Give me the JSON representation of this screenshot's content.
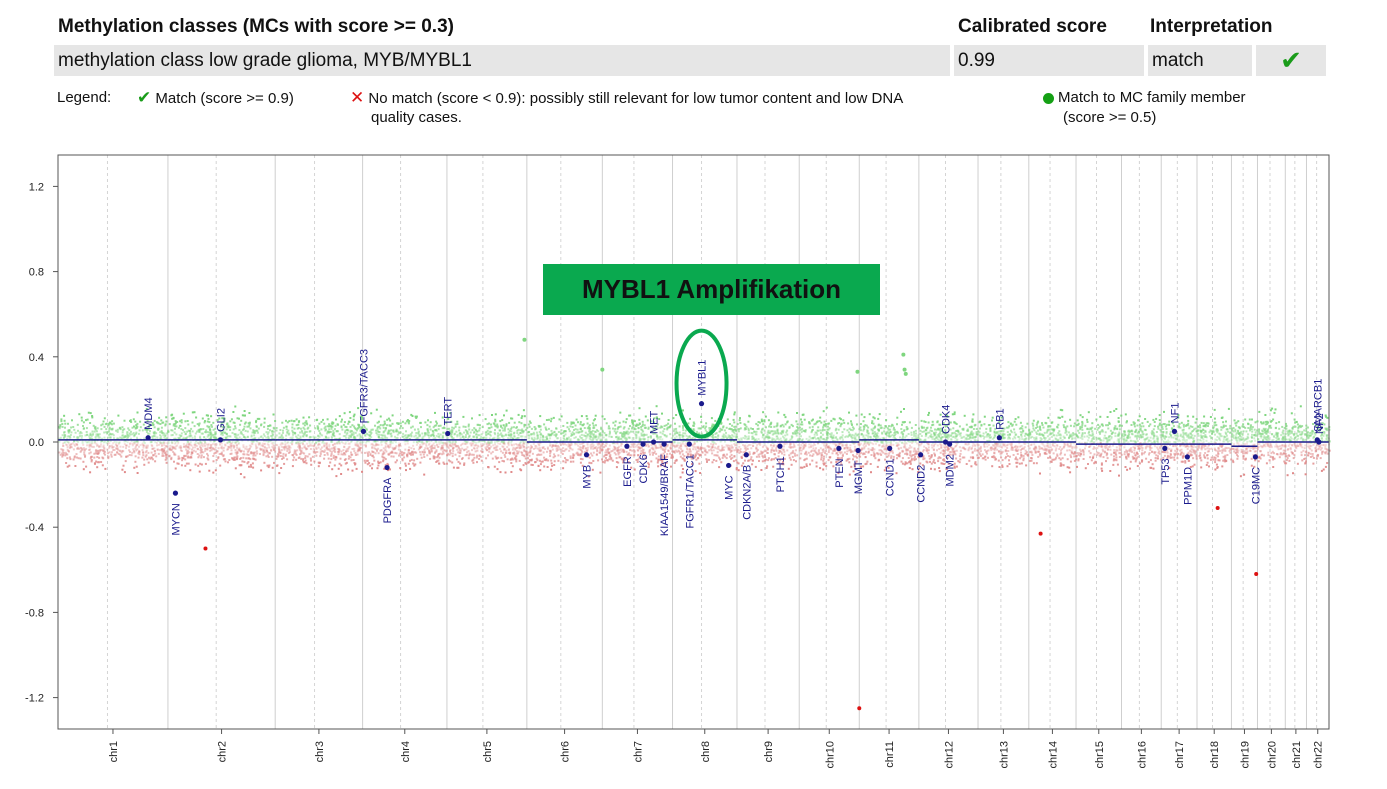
{
  "header": {
    "col_class": "Methylation classes (MCs with score >= 0.3)",
    "col_score": "Calibrated score",
    "col_interp": "Interpretation"
  },
  "row": {
    "class_name": "methylation class low grade glioma, MYB/MYBL1",
    "score": "0.99",
    "interpretation": "match",
    "status_icon": "check-icon"
  },
  "legend": {
    "label": "Legend:",
    "match": "Match (score >= 0.9)",
    "nomatch_line1": "No match (score < 0.9): possibly still relevant for low tumor content and low DNA",
    "nomatch_line2": "quality cases.",
    "family_line1": "Match to MC family member",
    "family_line2": "(score >= 0.5)"
  },
  "colors": {
    "match_green": "#1a9c1a",
    "nomatch_red": "#dd1111",
    "segment_blue": "#1a1a8c",
    "gene_label": "#1a1a8c",
    "gain_points": "#7fd67f",
    "loss_points": "#e08a8a",
    "annotation_bg": "#0aa94f",
    "annotation_text": "#111111"
  },
  "chart_data": {
    "type": "scatter",
    "title": "",
    "xlabel": "",
    "ylabel": "",
    "ylim": [
      -1.35,
      1.35
    ],
    "yticks": [
      "1.2",
      "0.8",
      "0.4",
      "0.0",
      "-0.4",
      "-0.8",
      "-1.2"
    ],
    "ytick_values": [
      1.2,
      0.8,
      0.4,
      0.0,
      -0.4,
      -0.8,
      -1.2
    ],
    "grid": "vertical chromosome boundaries",
    "chromosomes": [
      {
        "name": "chr1",
        "len": 249
      },
      {
        "name": "chr2",
        "len": 243
      },
      {
        "name": "chr3",
        "len": 198
      },
      {
        "name": "chr4",
        "len": 191
      },
      {
        "name": "chr5",
        "len": 181
      },
      {
        "name": "chr6",
        "len": 171
      },
      {
        "name": "chr7",
        "len": 159
      },
      {
        "name": "chr8",
        "len": 146
      },
      {
        "name": "chr9",
        "len": 141
      },
      {
        "name": "chr10",
        "len": 136
      },
      {
        "name": "chr11",
        "len": 135
      },
      {
        "name": "chr12",
        "len": 134
      },
      {
        "name": "chr13",
        "len": 115
      },
      {
        "name": "chr14",
        "len": 107
      },
      {
        "name": "chr15",
        "len": 103
      },
      {
        "name": "chr16",
        "len": 90
      },
      {
        "name": "chr17",
        "len": 81
      },
      {
        "name": "chr18",
        "len": 78
      },
      {
        "name": "chr19",
        "len": 59
      },
      {
        "name": "chr20",
        "len": 63
      },
      {
        "name": "chr21",
        "len": 48
      },
      {
        "name": "chr22",
        "len": 51
      }
    ],
    "segments": [
      {
        "chr": "chr1",
        "value": 0.01
      },
      {
        "chr": "chr2",
        "value": 0.01
      },
      {
        "chr": "chr3",
        "value": 0.01
      },
      {
        "chr": "chr4",
        "value": 0.01
      },
      {
        "chr": "chr5",
        "value": 0.01
      },
      {
        "chr": "chr6",
        "value": 0.0
      },
      {
        "chr": "chr7",
        "value": 0.0
      },
      {
        "chr": "chr8",
        "value": 0.01
      },
      {
        "chr": "chr9",
        "value": 0.0
      },
      {
        "chr": "chr10",
        "value": 0.0
      },
      {
        "chr": "chr11",
        "value": 0.01
      },
      {
        "chr": "chr12",
        "value": 0.0
      },
      {
        "chr": "chr13",
        "value": 0.0
      },
      {
        "chr": "chr14",
        "value": 0.0
      },
      {
        "chr": "chr15",
        "value": -0.01
      },
      {
        "chr": "chr16",
        "value": -0.01
      },
      {
        "chr": "chr17",
        "value": -0.01
      },
      {
        "chr": "chr18",
        "value": -0.01
      },
      {
        "chr": "chr19",
        "value": -0.02
      },
      {
        "chr": "chr20",
        "value": 0.0
      },
      {
        "chr": "chr21",
        "value": 0.0
      },
      {
        "chr": "chr22",
        "value": 0.0
      }
    ],
    "genes": [
      {
        "name": "MDM4",
        "chr": "chr1",
        "pos": 0.82,
        "value": 0.02,
        "side": "up"
      },
      {
        "name": "MYCN",
        "chr": "chr2",
        "pos": 0.07,
        "value": -0.24,
        "side": "down"
      },
      {
        "name": "GLI2",
        "chr": "chr2",
        "pos": 0.49,
        "value": 0.01,
        "side": "up"
      },
      {
        "name": "FGFR3/TACC3",
        "chr": "chr4",
        "pos": 0.01,
        "value": 0.05,
        "side": "up"
      },
      {
        "name": "PDGFRA",
        "chr": "chr4",
        "pos": 0.29,
        "value": -0.12,
        "side": "down"
      },
      {
        "name": "TERT",
        "chr": "chr5",
        "pos": 0.01,
        "value": 0.04,
        "side": "up"
      },
      {
        "name": "MYB",
        "chr": "chr6",
        "pos": 0.79,
        "value": -0.06,
        "side": "down"
      },
      {
        "name": "EGFR",
        "chr": "chr7",
        "pos": 0.35,
        "value": -0.02,
        "side": "down"
      },
      {
        "name": "CDK6",
        "chr": "chr7",
        "pos": 0.58,
        "value": -0.01,
        "side": "down"
      },
      {
        "name": "MET",
        "chr": "chr7",
        "pos": 0.73,
        "value": 0.0,
        "side": "up"
      },
      {
        "name": "KIAA1549/BRAF",
        "chr": "chr7",
        "pos": 0.88,
        "value": -0.01,
        "side": "down"
      },
      {
        "name": "FGFR1/TACC1",
        "chr": "chr8",
        "pos": 0.26,
        "value": -0.01,
        "side": "down"
      },
      {
        "name": "MYBL1",
        "chr": "chr8",
        "pos": 0.45,
        "value": 0.18,
        "side": "up"
      },
      {
        "name": "MYC",
        "chr": "chr8",
        "pos": 0.87,
        "value": -0.11,
        "side": "down"
      },
      {
        "name": "CDKN2A/B",
        "chr": "chr9",
        "pos": 0.15,
        "value": -0.06,
        "side": "down"
      },
      {
        "name": "PTCH1",
        "chr": "chr9",
        "pos": 0.69,
        "value": -0.02,
        "side": "down"
      },
      {
        "name": "PTEN",
        "chr": "chr10",
        "pos": 0.66,
        "value": -0.03,
        "side": "down"
      },
      {
        "name": "MGMT",
        "chr": "chr10",
        "pos": 0.98,
        "value": -0.04,
        "side": "down"
      },
      {
        "name": "CCND1",
        "chr": "chr11",
        "pos": 0.51,
        "value": -0.03,
        "side": "down"
      },
      {
        "name": "CCND2",
        "chr": "chr12",
        "pos": 0.03,
        "value": -0.06,
        "side": "down"
      },
      {
        "name": "CDK4",
        "chr": "chr12",
        "pos": 0.45,
        "value": 0.0,
        "side": "up"
      },
      {
        "name": "MDM2",
        "chr": "chr12",
        "pos": 0.52,
        "value": -0.01,
        "side": "down"
      },
      {
        "name": "RB1",
        "chr": "chr13",
        "pos": 0.42,
        "value": 0.02,
        "side": "up"
      },
      {
        "name": "TP53",
        "chr": "chr17",
        "pos": 0.1,
        "value": -0.03,
        "side": "down"
      },
      {
        "name": "NF1",
        "chr": "chr17",
        "pos": 0.37,
        "value": 0.05,
        "side": "up"
      },
      {
        "name": "PPM1D",
        "chr": "chr17",
        "pos": 0.73,
        "value": -0.07,
        "side": "down"
      },
      {
        "name": "C19MC",
        "chr": "chr19",
        "pos": 0.92,
        "value": -0.07,
        "side": "down"
      },
      {
        "name": "SMARCB1",
        "chr": "chr22",
        "pos": 0.48,
        "value": 0.01,
        "side": "up"
      },
      {
        "name": "NF2",
        "chr": "chr22",
        "pos": 0.55,
        "value": 0.0,
        "side": "up"
      }
    ],
    "outliers": [
      {
        "chr": "chr2",
        "pos": 0.35,
        "value": -0.5,
        "color": "red"
      },
      {
        "chr": "chr5",
        "pos": 0.97,
        "value": 0.48,
        "color": "green"
      },
      {
        "chr": "chr7",
        "pos": 0.0,
        "value": 0.34,
        "color": "green"
      },
      {
        "chr": "chr10",
        "pos": 0.97,
        "value": 0.33,
        "color": "green"
      },
      {
        "chr": "chr11",
        "pos": 0.0,
        "value": -1.25,
        "color": "red"
      },
      {
        "chr": "chr11",
        "pos": 0.74,
        "value": 0.41,
        "color": "green"
      },
      {
        "chr": "chr11",
        "pos": 0.76,
        "value": 0.34,
        "color": "green"
      },
      {
        "chr": "chr11",
        "pos": 0.78,
        "value": 0.32,
        "color": "green"
      },
      {
        "chr": "chr14",
        "pos": 0.25,
        "value": -0.43,
        "color": "red"
      },
      {
        "chr": "chr18",
        "pos": 0.6,
        "value": -0.31,
        "color": "red"
      },
      {
        "chr": "chr19",
        "pos": 0.95,
        "value": -0.62,
        "color": "red"
      }
    ],
    "annotation": {
      "text": "MYBL1 Amplifikation",
      "target": "MYBL1"
    }
  }
}
